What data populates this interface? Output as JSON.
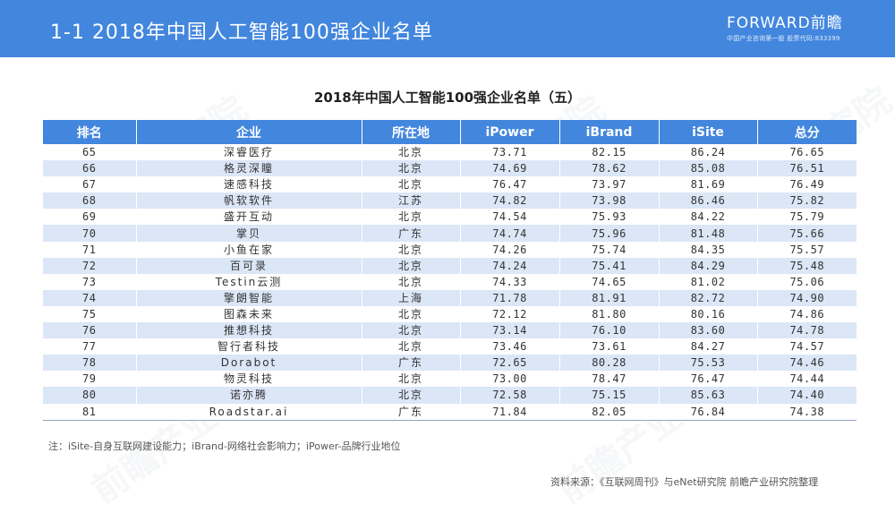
{
  "header": {
    "title": "1-1  2018年中国人工智能100强企业名单",
    "brand_logo": "FORWARD前瞻",
    "brand_tagline": "中国产业咨询第一股 股票代码:833399",
    "bg_color": "#4286de"
  },
  "table": {
    "title": "2018年中国人工智能100强企业名单（五）",
    "columns": [
      "排名",
      "企业",
      "所在地",
      "iPower",
      "iBrand",
      "iSite",
      "总分"
    ],
    "rows": [
      {
        "rank": "65",
        "company": "深睿医疗",
        "location": "北京",
        "ipower": "73.71",
        "ibrand": "82.15",
        "isite": "86.24",
        "total": "76.65"
      },
      {
        "rank": "66",
        "company": "格灵深瞳",
        "location": "北京",
        "ipower": "74.69",
        "ibrand": "78.62",
        "isite": "85.08",
        "total": "76.51"
      },
      {
        "rank": "67",
        "company": "速感科技",
        "location": "北京",
        "ipower": "76.47",
        "ibrand": "73.97",
        "isite": "81.69",
        "total": "76.49"
      },
      {
        "rank": "68",
        "company": "帆软软件",
        "location": "江苏",
        "ipower": "74.82",
        "ibrand": "73.98",
        "isite": "86.46",
        "total": "75.82"
      },
      {
        "rank": "69",
        "company": "盛开互动",
        "location": "北京",
        "ipower": "74.54",
        "ibrand": "75.93",
        "isite": "84.22",
        "total": "75.79"
      },
      {
        "rank": "70",
        "company": "掌贝",
        "location": "广东",
        "ipower": "74.74",
        "ibrand": "75.96",
        "isite": "81.48",
        "total": "75.66"
      },
      {
        "rank": "71",
        "company": "小鱼在家",
        "location": "北京",
        "ipower": "74.26",
        "ibrand": "75.74",
        "isite": "84.35",
        "total": "75.57"
      },
      {
        "rank": "72",
        "company": "百可录",
        "location": "北京",
        "ipower": "74.24",
        "ibrand": "75.41",
        "isite": "84.29",
        "total": "75.48"
      },
      {
        "rank": "73",
        "company": "Testin云测",
        "location": "北京",
        "ipower": "74.33",
        "ibrand": "74.65",
        "isite": "81.02",
        "total": "75.06"
      },
      {
        "rank": "74",
        "company": "擎朗智能",
        "location": "上海",
        "ipower": "71.78",
        "ibrand": "81.91",
        "isite": "82.72",
        "total": "74.90"
      },
      {
        "rank": "75",
        "company": "图森未来",
        "location": "北京",
        "ipower": "72.12",
        "ibrand": "81.80",
        "isite": "80.16",
        "total": "74.86"
      },
      {
        "rank": "76",
        "company": "推想科技",
        "location": "北京",
        "ipower": "73.14",
        "ibrand": "76.10",
        "isite": "83.60",
        "total": "74.78"
      },
      {
        "rank": "77",
        "company": "智行者科技",
        "location": "北京",
        "ipower": "73.46",
        "ibrand": "73.61",
        "isite": "84.27",
        "total": "74.57"
      },
      {
        "rank": "78",
        "company": "Dorabot",
        "location": "广东",
        "ipower": "72.65",
        "ibrand": "80.28",
        "isite": "75.53",
        "total": "74.46"
      },
      {
        "rank": "79",
        "company": "物灵科技",
        "location": "北京",
        "ipower": "73.00",
        "ibrand": "78.47",
        "isite": "76.47",
        "total": "74.44"
      },
      {
        "rank": "80",
        "company": "诺亦腾",
        "location": "北京",
        "ipower": "72.58",
        "ibrand": "75.15",
        "isite": "85.63",
        "total": "74.40"
      },
      {
        "rank": "81",
        "company": "Roadstar.ai",
        "location": "广东",
        "ipower": "71.84",
        "ibrand": "82.05",
        "isite": "76.84",
        "total": "74.38"
      }
    ],
    "header_color": "#4286de",
    "stripe_color": "#dbe6f6"
  },
  "footer": {
    "note": "注：iSite-自身互联网建设能力；iBrand-网络社会影响力；iPower-品牌行业地位",
    "source": "资料来源：《互联网周刊》与eNet研究院 前瞻产业研究院整理"
  },
  "watermarks": [
    "研究院",
    "前瞻产业研究院",
    "前瞻"
  ]
}
